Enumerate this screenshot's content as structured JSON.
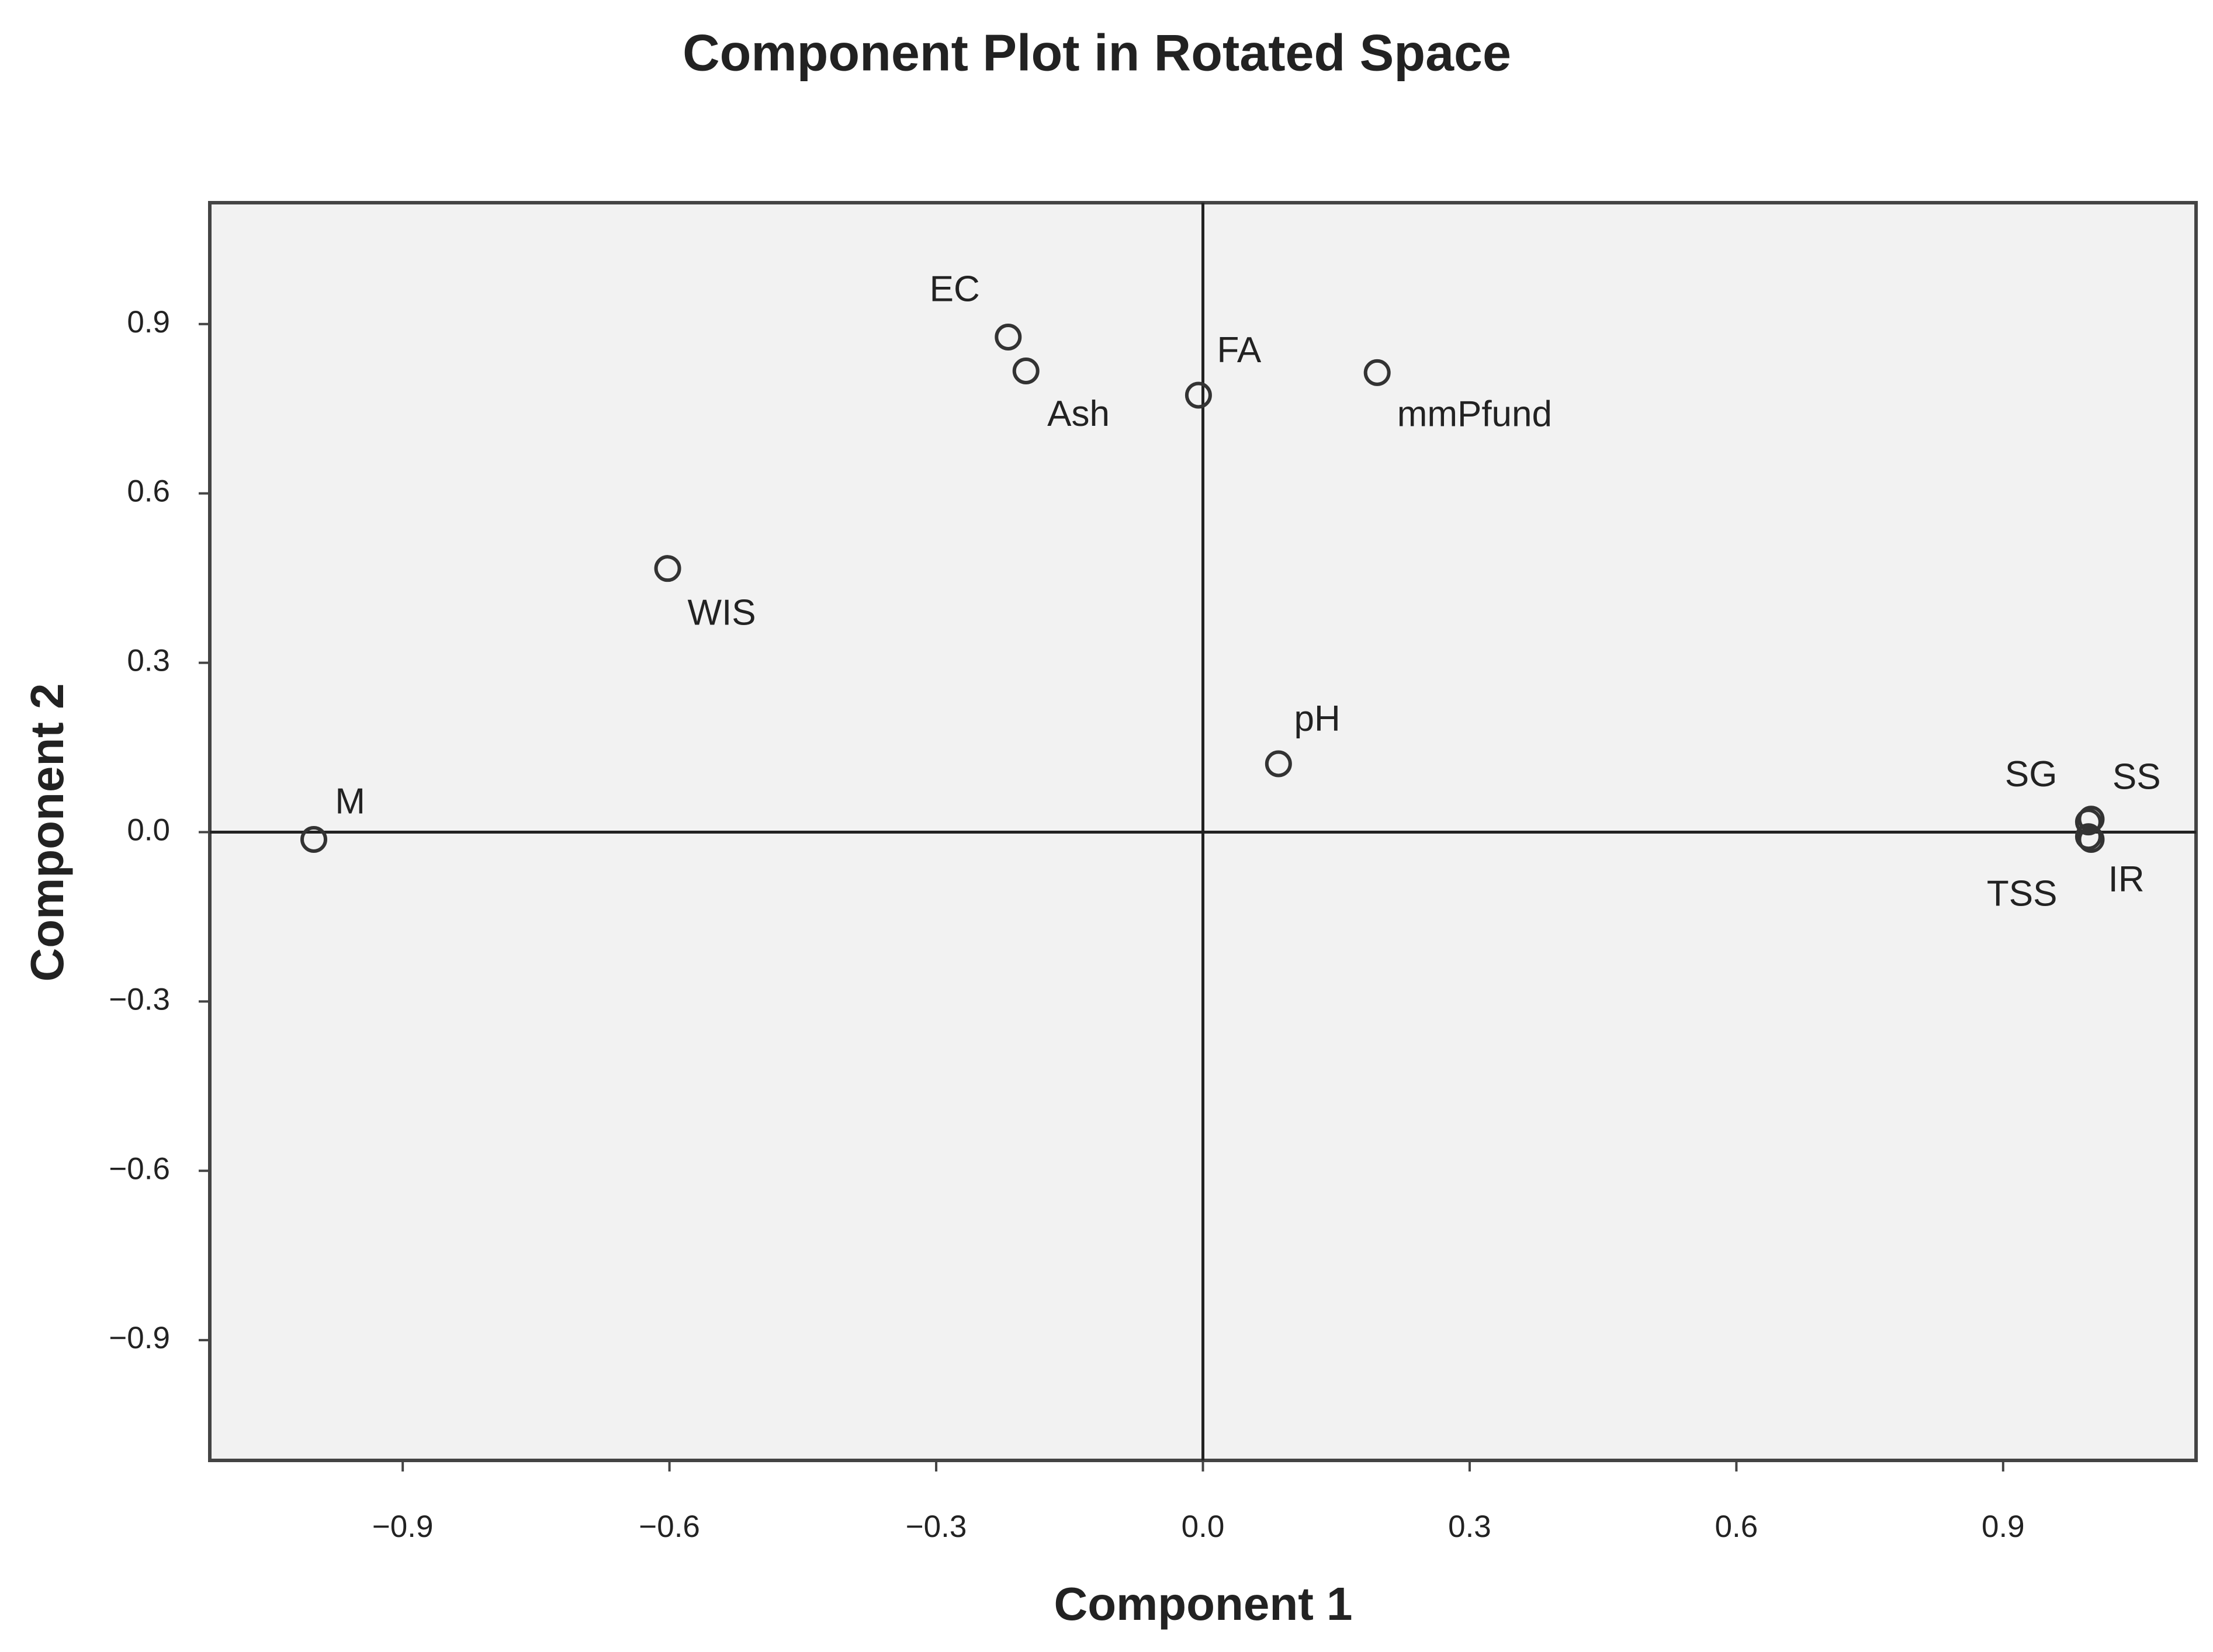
{
  "chart_data": {
    "type": "scatter",
    "title": "Component Plot in Rotated Space",
    "x_label": "Component 1",
    "y_label": "Component 2",
    "labels": [
      "M",
      "WIS",
      "EC",
      "Ash",
      "FA",
      "mmPfund",
      "pH",
      "SG",
      "SS",
      "TSS",
      "IR"
    ],
    "x": [
      -1.0,
      -0.602,
      -0.219,
      -0.199,
      -0.005,
      0.196,
      0.085,
      0.996,
      0.999,
      0.996,
      0.999
    ],
    "y": [
      -0.013,
      0.467,
      0.877,
      0.817,
      0.774,
      0.814,
      0.121,
      0.018,
      0.023,
      -0.008,
      -0.013
    ],
    "xlim": [
      -1.117,
      1.117
    ],
    "ylim": [
      -1.113,
      1.115
    ],
    "xticks": [
      {
        "value": -0.9,
        "label": "−0.9"
      },
      {
        "value": -0.6,
        "label": "−0.6"
      },
      {
        "value": -0.3,
        "label": "−0.3"
      },
      {
        "value": 0,
        "label": "0.0"
      },
      0.3,
      0.6,
      0.9
    ],
    "yticks": [
      {
        "value": -0.9,
        "label": "−0.9"
      },
      {
        "value": -0.6,
        "label": "−0.6"
      },
      {
        "value": -0.3,
        "label": "−0.3"
      },
      {
        "value": 0,
        "label": "0.0"
      },
      0.3,
      0.6,
      0.9
    ],
    "color": "#333333"
  }
}
